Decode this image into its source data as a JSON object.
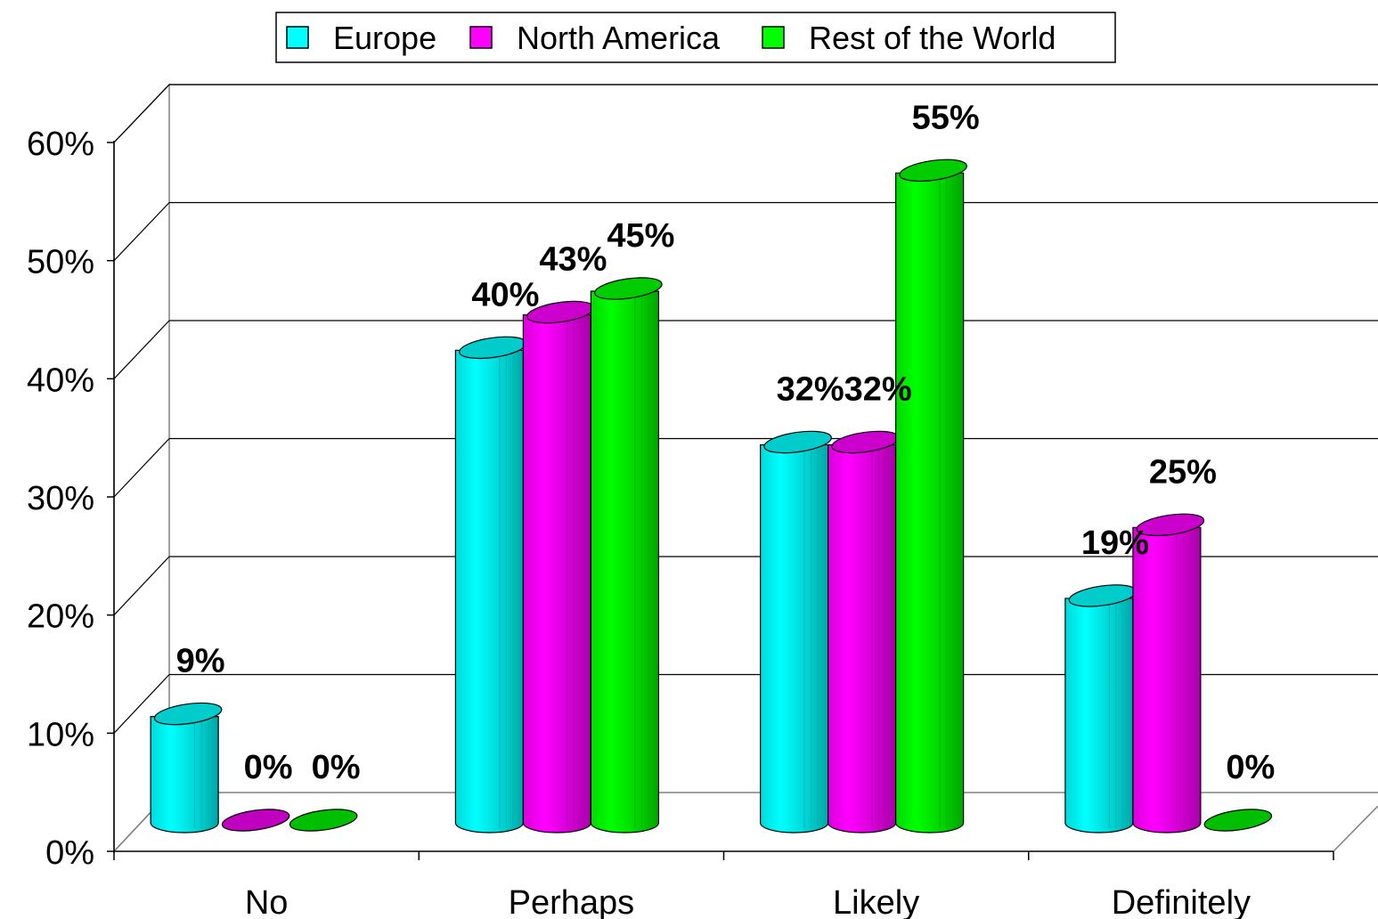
{
  "chart_data": {
    "type": "bar",
    "categories": [
      "No",
      "Perhaps",
      "Likely",
      "Definitely"
    ],
    "series": [
      {
        "name": "Europe",
        "color": "#00FFFF",
        "values": [
          9,
          40,
          32,
          19
        ],
        "labels": [
          "9%",
          "40%",
          "32%",
          "19%"
        ]
      },
      {
        "name": "North America",
        "color": "#FF00FF",
        "values": [
          0,
          43,
          32,
          25
        ],
        "labels": [
          "0%",
          "43%",
          "32%",
          "25%"
        ]
      },
      {
        "name": "Rest of the World",
        "color": "#00FF00",
        "values": [
          0,
          45,
          55,
          0
        ],
        "labels": [
          "0%",
          "45%",
          "55%",
          "0%"
        ]
      }
    ],
    "ylim": [
      0,
      60
    ],
    "yticks": [
      "0%",
      "10%",
      "20%",
      "30%",
      "40%",
      "50%",
      "60%"
    ],
    "grid": true,
    "legend_position": "top-center",
    "style": "3d-cylinder"
  }
}
